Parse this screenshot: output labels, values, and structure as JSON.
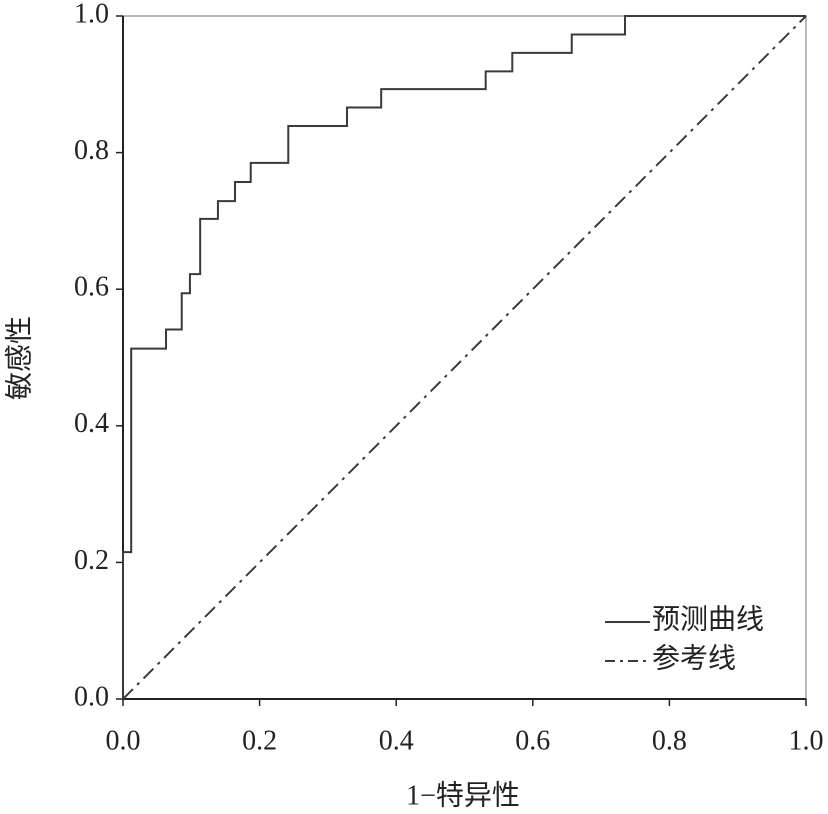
{
  "chart_data": {
    "type": "line",
    "x_label": "1−特异性",
    "y_label": "敏感性",
    "xlim": [
      0,
      1
    ],
    "ylim": [
      0,
      1
    ],
    "xticks": [
      {
        "value": 0,
        "label": "0.0"
      },
      0.2,
      0.4,
      0.6,
      0.8,
      {
        "value": 1,
        "label": "1.0"
      }
    ],
    "yticks": [
      {
        "value": 0,
        "label": "0.0"
      },
      0.2,
      0.4,
      0.6,
      0.8,
      {
        "value": 1,
        "label": "1.0"
      }
    ],
    "legend": "lower right",
    "series": [
      {
        "name": "预测曲线",
        "color": "#3a3a3a",
        "style": "solid",
        "x": [
          0,
          0,
          0.012,
          0.012,
          0.063,
          0.063,
          0.086,
          0.086,
          0.098,
          0.098,
          0.113,
          0.113,
          0.139,
          0.139,
          0.164,
          0.164,
          0.187,
          0.187,
          0.242,
          0.242,
          0.328,
          0.328,
          0.378,
          0.378,
          0.531,
          0.531,
          0.57,
          0.57,
          0.657,
          0.657,
          0.735,
          0.735,
          1
        ],
        "values": [
          0,
          0.215,
          0.215,
          0.513,
          0.513,
          0.541,
          0.541,
          0.594,
          0.594,
          0.622,
          0.622,
          0.703,
          0.703,
          0.729,
          0.729,
          0.757,
          0.757,
          0.785,
          0.785,
          0.839,
          0.839,
          0.866,
          0.866,
          0.893,
          0.893,
          0.919,
          0.919,
          0.946,
          0.946,
          0.973,
          0.973,
          1,
          1
        ]
      },
      {
        "name": "参考线",
        "color": "#3a3a3a",
        "style": "dashdot",
        "x": [
          0,
          1
        ],
        "values": [
          0,
          1
        ]
      }
    ]
  }
}
